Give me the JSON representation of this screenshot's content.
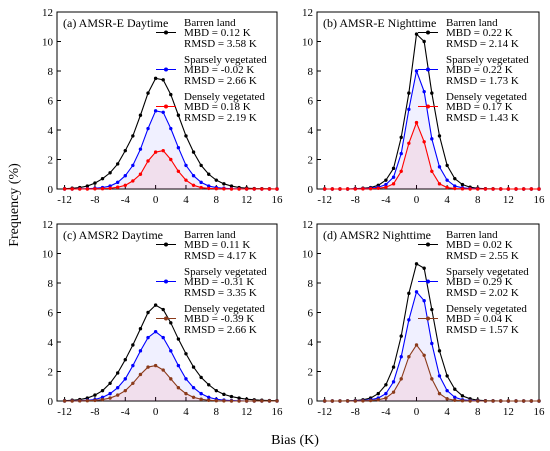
{
  "figure": {
    "ylabel": "Frequency (%)",
    "xlabel": "Bias (K)"
  },
  "chart_data": [
    {
      "type": "line",
      "title": "(a) AMSR-E Daytime",
      "xlim": [
        -13,
        16
      ],
      "ylim": [
        0,
        12
      ],
      "xticks": [
        -12,
        -8,
        -4,
        0,
        4,
        8,
        12,
        16
      ],
      "yticks": [
        0,
        2,
        4,
        6,
        8,
        10,
        12
      ],
      "grid": false,
      "legend": "top-right",
      "series": [
        {
          "name": "Barren land",
          "stats": [
            "MBD = 0.12 K",
            "RMSD = 3.58 K"
          ],
          "color": "#000000",
          "x": [
            -12,
            -11,
            -10,
            -9,
            -8,
            -7,
            -6,
            -5,
            -4,
            -3,
            -2,
            -1,
            0,
            1,
            2,
            3,
            4,
            5,
            6,
            7,
            8,
            9,
            10,
            11,
            12,
            13,
            14,
            15,
            16
          ],
          "y": [
            0.02,
            0.05,
            0.1,
            0.2,
            0.4,
            0.7,
            1.1,
            1.7,
            2.6,
            3.6,
            5.0,
            6.5,
            7.5,
            7.4,
            6.4,
            5.0,
            3.6,
            2.5,
            1.6,
            1.0,
            0.6,
            0.35,
            0.2,
            0.1,
            0.06,
            0.03,
            0.02,
            0.01,
            0
          ]
        },
        {
          "name": "Sparsely vegetated",
          "stats": [
            "MBD = -0.02 K",
            "RMSD = 2.66 K"
          ],
          "color": "#0000ff",
          "x": [
            -12,
            -11,
            -10,
            -9,
            -8,
            -7,
            -6,
            -5,
            -4,
            -3,
            -2,
            -1,
            0,
            1,
            2,
            3,
            4,
            5,
            6,
            7,
            8,
            9,
            10,
            11,
            12,
            13,
            14,
            15,
            16
          ],
          "y": [
            0,
            0,
            0.01,
            0.02,
            0.05,
            0.1,
            0.2,
            0.45,
            0.9,
            1.6,
            2.7,
            4.1,
            5.3,
            5.2,
            4.1,
            2.8,
            1.6,
            0.9,
            0.45,
            0.2,
            0.1,
            0.05,
            0.02,
            0.01,
            0,
            0,
            0,
            0,
            0
          ]
        },
        {
          "name": "Densely vegetated",
          "stats": [
            "MBD = 0.18 K",
            "RMSD = 2.19 K"
          ],
          "color": "#ff0000",
          "x": [
            -12,
            -11,
            -10,
            -9,
            -8,
            -7,
            -6,
            -5,
            -4,
            -3,
            -2,
            -1,
            0,
            1,
            2,
            3,
            4,
            5,
            6,
            7,
            8,
            9,
            10,
            11,
            12,
            13,
            14,
            15,
            16
          ],
          "y": [
            0,
            0,
            0,
            0,
            0.01,
            0.02,
            0.05,
            0.12,
            0.25,
            0.55,
            1.0,
            1.9,
            2.5,
            2.6,
            2.0,
            1.2,
            0.6,
            0.25,
            0.1,
            0.04,
            0.02,
            0.01,
            0,
            0,
            0,
            0,
            0,
            0,
            0
          ]
        }
      ]
    },
    {
      "type": "line",
      "title": "(b) AMSR-E Nighttime",
      "xlim": [
        -13,
        16
      ],
      "ylim": [
        0,
        12
      ],
      "xticks": [
        -12,
        -8,
        -4,
        0,
        4,
        8,
        12,
        16
      ],
      "yticks": [
        0,
        2,
        4,
        6,
        8,
        10,
        12
      ],
      "grid": false,
      "legend": "top-right",
      "series": [
        {
          "name": "Barren land",
          "stats": [
            "MBD = 0.22 K",
            "RMSD = 2.14 K"
          ],
          "color": "#000000",
          "x": [
            -12,
            -11,
            -10,
            -9,
            -8,
            -7,
            -6,
            -5,
            -4,
            -3,
            -2,
            -1,
            0,
            1,
            2,
            3,
            4,
            5,
            6,
            7,
            8,
            9,
            10,
            11,
            12,
            13,
            14,
            15,
            16
          ],
          "y": [
            0,
            0,
            0,
            0,
            0.02,
            0.05,
            0.1,
            0.25,
            0.6,
            1.4,
            3.5,
            6.5,
            10.5,
            10.0,
            6.5,
            3.6,
            1.6,
            0.7,
            0.3,
            0.12,
            0.05,
            0.02,
            0.01,
            0,
            0,
            0,
            0,
            0,
            0
          ]
        },
        {
          "name": "Sparsely vegetated",
          "stats": [
            "MBD = 0.22 K",
            "RMSD = 1.73 K"
          ],
          "color": "#0000ff",
          "x": [
            -12,
            -11,
            -10,
            -9,
            -8,
            -7,
            -6,
            -5,
            -4,
            -3,
            -2,
            -1,
            0,
            1,
            2,
            3,
            4,
            5,
            6,
            7,
            8,
            9,
            10,
            11,
            12,
            13,
            14,
            15,
            16
          ],
          "y": [
            0,
            0,
            0,
            0,
            0.01,
            0.02,
            0.05,
            0.12,
            0.3,
            0.8,
            2.4,
            5.4,
            8.0,
            6.6,
            3.4,
            1.5,
            0.6,
            0.2,
            0.08,
            0.03,
            0.01,
            0,
            0,
            0,
            0,
            0,
            0,
            0,
            0
          ]
        },
        {
          "name": "Densely vegetated",
          "stats": [
            "MBD = 0.17 K",
            "RMSD = 1.43 K"
          ],
          "color": "#ff0000",
          "x": [
            -12,
            -11,
            -10,
            -9,
            -8,
            -7,
            -6,
            -5,
            -4,
            -3,
            -2,
            -1,
            0,
            1,
            2,
            3,
            4,
            5,
            6,
            7,
            8,
            9,
            10,
            11,
            12,
            13,
            14,
            15,
            16
          ],
          "y": [
            0,
            0,
            0,
            0,
            0,
            0.01,
            0.02,
            0.05,
            0.12,
            0.35,
            1.2,
            3.1,
            4.5,
            3.2,
            1.2,
            0.35,
            0.1,
            0.03,
            0.01,
            0,
            0,
            0,
            0,
            0,
            0,
            0,
            0,
            0,
            0
          ]
        }
      ]
    },
    {
      "type": "line",
      "title": "(c) AMSR2 Daytime",
      "xlim": [
        -13,
        16
      ],
      "ylim": [
        0,
        12
      ],
      "xticks": [
        -12,
        -8,
        -4,
        0,
        4,
        8,
        12,
        16
      ],
      "yticks": [
        0,
        2,
        4,
        6,
        8,
        10,
        12
      ],
      "grid": false,
      "legend": "top-right",
      "series": [
        {
          "name": "Barren land",
          "stats": [
            "MBD = 0.11 K",
            "RMSD = 4.17 K"
          ],
          "color": "#000000",
          "x": [
            -12,
            -11,
            -10,
            -9,
            -8,
            -7,
            -6,
            -5,
            -4,
            -3,
            -2,
            -1,
            0,
            1,
            2,
            3,
            4,
            5,
            6,
            7,
            8,
            9,
            10,
            11,
            12,
            13,
            14,
            15,
            16
          ],
          "y": [
            0.02,
            0.05,
            0.1,
            0.2,
            0.4,
            0.7,
            1.2,
            1.9,
            2.8,
            3.8,
            4.9,
            6.0,
            6.5,
            6.2,
            5.3,
            4.2,
            3.2,
            2.3,
            1.6,
            1.1,
            0.7,
            0.45,
            0.3,
            0.2,
            0.12,
            0.08,
            0.05,
            0.03,
            0.02
          ]
        },
        {
          "name": "Sparsely vegetated",
          "stats": [
            "MBD = -0.31 K",
            "RMSD = 3.35 K"
          ],
          "color": "#0000ff",
          "x": [
            -12,
            -11,
            -10,
            -9,
            -8,
            -7,
            -6,
            -5,
            -4,
            -3,
            -2,
            -1,
            0,
            1,
            2,
            3,
            4,
            5,
            6,
            7,
            8,
            9,
            10,
            11,
            12,
            13,
            14,
            15,
            16
          ],
          "y": [
            0,
            0.01,
            0.02,
            0.05,
            0.1,
            0.25,
            0.5,
            0.9,
            1.5,
            2.4,
            3.4,
            4.3,
            4.7,
            4.3,
            3.4,
            2.4,
            1.5,
            0.9,
            0.5,
            0.25,
            0.12,
            0.06,
            0.03,
            0.01,
            0,
            0,
            0,
            0,
            0
          ]
        },
        {
          "name": "Densely vegetated",
          "stats": [
            "MBD = -0.39 K",
            "RMSD = 2.66 K"
          ],
          "color": "#8b3a1a",
          "x": [
            -12,
            -11,
            -10,
            -9,
            -8,
            -7,
            -6,
            -5,
            -4,
            -3,
            -2,
            -1,
            0,
            1,
            2,
            3,
            4,
            5,
            6,
            7,
            8,
            9,
            10,
            11,
            12,
            13,
            14,
            15,
            16
          ],
          "y": [
            0,
            0,
            0.01,
            0.02,
            0.04,
            0.1,
            0.2,
            0.4,
            0.7,
            1.2,
            1.8,
            2.3,
            2.4,
            2.1,
            1.5,
            0.9,
            0.5,
            0.25,
            0.12,
            0.05,
            0.02,
            0.01,
            0,
            0,
            0,
            0,
            0,
            0,
            0
          ]
        }
      ]
    },
    {
      "type": "line",
      "title": "(d) AMSR2 Nighttime",
      "xlim": [
        -13,
        16
      ],
      "ylim": [
        0,
        12
      ],
      "xticks": [
        -12,
        -8,
        -4,
        0,
        4,
        8,
        12,
        16
      ],
      "yticks": [
        0,
        2,
        4,
        6,
        8,
        10,
        12
      ],
      "grid": false,
      "legend": "top-right",
      "series": [
        {
          "name": "Barren land",
          "stats": [
            "MBD = 0.02 K",
            "RMSD = 2.55 K"
          ],
          "color": "#000000",
          "x": [
            -12,
            -11,
            -10,
            -9,
            -8,
            -7,
            -6,
            -5,
            -4,
            -3,
            -2,
            -1,
            0,
            1,
            2,
            3,
            4,
            5,
            6,
            7,
            8,
            9,
            10,
            11,
            12,
            13,
            14,
            15,
            16
          ],
          "y": [
            0,
            0,
            0,
            0.01,
            0.03,
            0.08,
            0.2,
            0.5,
            1.1,
            2.3,
            4.4,
            7.3,
            9.3,
            9.0,
            6.2,
            3.4,
            1.7,
            0.8,
            0.35,
            0.15,
            0.06,
            0.02,
            0.01,
            0,
            0,
            0,
            0,
            0,
            0
          ]
        },
        {
          "name": "Sparsely vegetated",
          "stats": [
            "MBD = 0.29 K",
            "RMSD = 2.02 K"
          ],
          "color": "#0000ff",
          "x": [
            -12,
            -11,
            -10,
            -9,
            -8,
            -7,
            -6,
            -5,
            -4,
            -3,
            -2,
            -1,
            0,
            1,
            2,
            3,
            4,
            5,
            6,
            7,
            8,
            9,
            10,
            11,
            12,
            13,
            14,
            15,
            16
          ],
          "y": [
            0,
            0,
            0,
            0,
            0.01,
            0.03,
            0.08,
            0.2,
            0.5,
            1.3,
            3.0,
            5.5,
            7.4,
            6.8,
            3.9,
            1.7,
            0.7,
            0.25,
            0.08,
            0.03,
            0.01,
            0,
            0,
            0,
            0,
            0,
            0,
            0,
            0
          ]
        },
        {
          "name": "Densely vegetated",
          "stats": [
            "MBD = 0.04 K",
            "RMSD = 1.57 K"
          ],
          "color": "#8b3a1a",
          "x": [
            -12,
            -11,
            -10,
            -9,
            -8,
            -7,
            -6,
            -5,
            -4,
            -3,
            -2,
            -1,
            0,
            1,
            2,
            3,
            4,
            5,
            6,
            7,
            8,
            9,
            10,
            11,
            12,
            13,
            14,
            15,
            16
          ],
          "y": [
            0,
            0,
            0,
            0,
            0,
            0.01,
            0.03,
            0.08,
            0.2,
            0.6,
            1.5,
            3.0,
            3.8,
            3.1,
            1.5,
            0.5,
            0.15,
            0.05,
            0.02,
            0,
            0,
            0,
            0,
            0,
            0,
            0,
            0,
            0,
            0
          ]
        }
      ]
    }
  ]
}
